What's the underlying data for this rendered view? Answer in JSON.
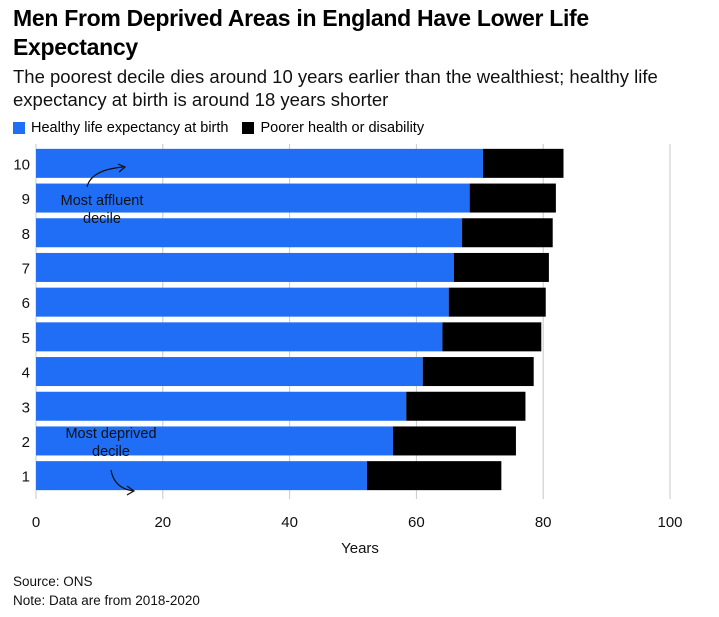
{
  "title": "Men From Deprived Areas in England Have Lower Life Expectancy",
  "subtitle": "The poorest decile dies around 10 years earlier than the wealthiest; healthy life expectancy at birth is around 18 years shorter",
  "legend": [
    {
      "label": "Healthy life expectancy at birth",
      "color": "#1f6ef5"
    },
    {
      "label": "Poorer health or disability",
      "color": "#000000"
    }
  ],
  "chart_data": {
    "type": "bar",
    "orientation": "horizontal",
    "stacked": true,
    "categories": [
      "10",
      "9",
      "8",
      "7",
      "6",
      "5",
      "4",
      "3",
      "2",
      "1"
    ],
    "series": [
      {
        "name": "Healthy life expectancy at birth",
        "color": "#1f6ef5",
        "values": [
          70.5,
          68.4,
          67.2,
          65.9,
          65.1,
          64.1,
          61.0,
          58.4,
          56.3,
          52.2
        ]
      },
      {
        "name": "Poorer health or disability",
        "color": "#000000",
        "values": [
          12.7,
          13.6,
          14.3,
          15.0,
          15.3,
          15.6,
          17.5,
          18.8,
          19.4,
          21.2
        ]
      }
    ],
    "xlabel": "Years",
    "ylabel": "",
    "xlim": [
      0,
      100
    ],
    "xticks": [
      0,
      20,
      40,
      60,
      80,
      100
    ],
    "annotations": [
      {
        "text": "Most affluent decile",
        "target": "10"
      },
      {
        "text": "Most deprived decile",
        "target": "1"
      }
    ]
  },
  "footer": {
    "source": "Source: ONS",
    "note": "Note: Data are from 2018-2020"
  }
}
